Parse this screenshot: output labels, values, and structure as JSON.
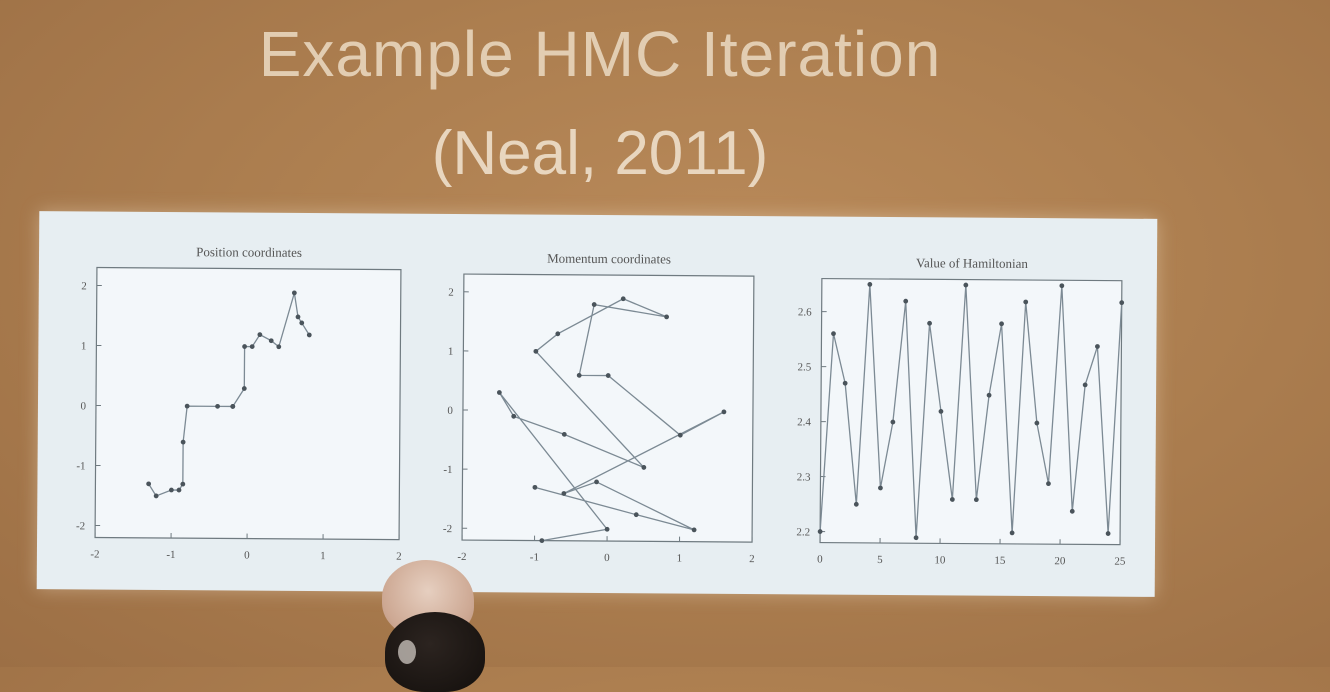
{
  "slide": {
    "title": "Example HMC Iteration",
    "subtitle": "(Neal, 2011)"
  },
  "chart_data": [
    {
      "type": "line",
      "title": "Position coordinates",
      "xlim": [
        -2,
        2
      ],
      "ylim": [
        -2.2,
        2.3
      ],
      "xticks": [
        "-2",
        "-1",
        "0",
        "1",
        "2"
      ],
      "yticks": [
        "2",
        "1",
        "0",
        "-1",
        "-2"
      ],
      "series": [
        {
          "x": [
            -1.3,
            -1.2,
            -1.0,
            -0.9,
            -0.85,
            -0.85,
            -0.8,
            -0.4,
            -0.2,
            -0.2,
            -0.05,
            -0.05,
            0.05,
            0.15,
            0.3,
            0.4,
            0.6,
            0.65,
            0.7,
            0.8
          ],
          "y": [
            -1.3,
            -1.5,
            -1.4,
            -1.4,
            -1.3,
            -0.6,
            0.0,
            0.0,
            0.0,
            0.0,
            0.3,
            1.0,
            1.0,
            1.2,
            1.1,
            1.0,
            1.9,
            1.5,
            1.4,
            1.2
          ]
        }
      ]
    },
    {
      "type": "line",
      "title": "Momentum coordinates",
      "xlim": [
        -2,
        2
      ],
      "ylim": [
        -2.2,
        2.3
      ],
      "xticks": [
        "-2",
        "-1",
        "0",
        "1",
        "2"
      ],
      "yticks": [
        "2",
        "1",
        "0",
        "-1",
        "-2"
      ],
      "series": [
        {
          "x": [
            -0.9,
            0.0,
            -1.5,
            -1.3,
            -0.6,
            0.5,
            -1.0,
            -0.7,
            0.2,
            0.8,
            -0.2,
            -0.4,
            0.0,
            1.0,
            1.6,
            -0.6,
            -0.15,
            1.2,
            0.4,
            -1.0
          ],
          "y": [
            -2.2,
            -2.0,
            0.3,
            -0.1,
            -0.4,
            -0.95,
            1.0,
            1.3,
            1.9,
            1.6,
            1.8,
            0.6,
            0.6,
            -0.4,
            0.0,
            -1.4,
            -1.2,
            -2.0,
            -1.75,
            -1.3
          ]
        }
      ]
    },
    {
      "type": "line",
      "title": "Value of Hamiltonian",
      "xlim": [
        0,
        25
      ],
      "ylim": [
        2.18,
        2.66
      ],
      "xticks": [
        "0",
        "5",
        "10",
        "15",
        "20",
        "25"
      ],
      "yticks": [
        "2.6",
        "2.5",
        "2.4",
        "2.3",
        "2.2"
      ],
      "series": [
        {
          "x": [
            0,
            1,
            2,
            3,
            4,
            5,
            6,
            7,
            8,
            9,
            10,
            11,
            12,
            13,
            14,
            15,
            16,
            17,
            18,
            19,
            20,
            21,
            22,
            23,
            24,
            25
          ],
          "y": [
            2.2,
            2.56,
            2.47,
            2.25,
            2.65,
            2.28,
            2.4,
            2.62,
            2.19,
            2.58,
            2.42,
            2.26,
            2.65,
            2.26,
            2.45,
            2.58,
            2.2,
            2.62,
            2.4,
            2.29,
            2.65,
            2.24,
            2.47,
            2.54,
            2.2,
            2.62
          ]
        }
      ]
    }
  ]
}
